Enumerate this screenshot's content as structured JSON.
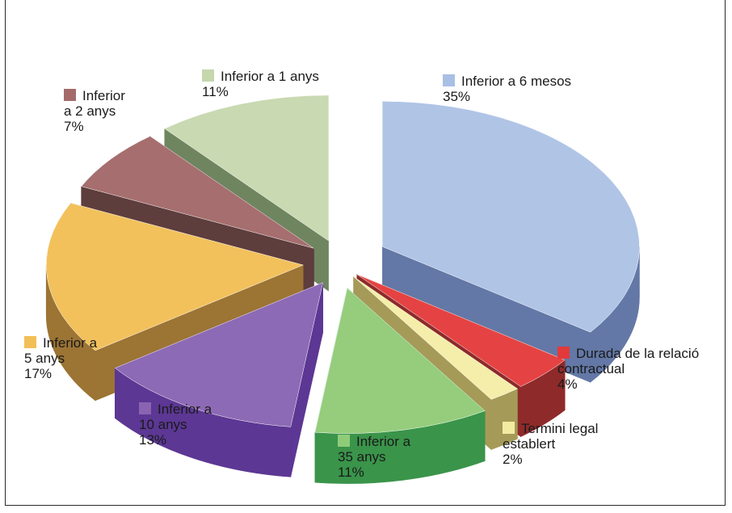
{
  "chart_data": {
    "type": "pie",
    "style": "exploded-3d",
    "unit": "%",
    "slices": [
      {
        "name": "Inferior a 6 mesos",
        "label_lines": [
          "Inferior a 6 mesos"
        ],
        "value": 35,
        "value_label": "35%",
        "top": "#b0c4e6",
        "side": "#6378a6",
        "marker": "#a9bfe5"
      },
      {
        "name": "Durada de la relació contractual",
        "label_lines": [
          "Durada de la relació",
          "contractual"
        ],
        "value": 4,
        "value_label": "4%",
        "top": "#e54343",
        "side": "#8e2a2a",
        "marker": "#e23a3a"
      },
      {
        "name": "Termini legal establert",
        "label_lines": [
          "Termini legal",
          "establert"
        ],
        "value": 2,
        "value_label": "2%",
        "top": "#f4eeaa",
        "side": "#a69a58",
        "marker": "#f3eba2"
      },
      {
        "name": "Inferior a 35 anys",
        "label_lines": [
          "Inferior a",
          "35 anys"
        ],
        "value": 11,
        "value_label": "11%",
        "top": "#95cd7c",
        "side": "#3a944a",
        "marker": "#8fcc7a"
      },
      {
        "name": "Inferior a 10 anys",
        "label_lines": [
          "Inferior a",
          "10 anys"
        ],
        "value": 13,
        "value_label": "13%",
        "top": "#8d6ab5",
        "side": "#5c3794",
        "marker": "#8a64b1"
      },
      {
        "name": "Inferior a 5 anys",
        "label_lines": [
          "Inferior a",
          "5 anys"
        ],
        "value": 17,
        "value_label": "17%",
        "top": "#f2c15c",
        "side": "#9c7434",
        "marker": "#f2bf56"
      },
      {
        "name": "Inferior a 2 anys",
        "label_lines": [
          "Inferior",
          "a 2 anys"
        ],
        "value": 7,
        "value_label": "7%",
        "top": "#a66e6e",
        "side": "#5e3d3d",
        "marker": "#a46a6a"
      },
      {
        "name": "Inferior a 1 anys",
        "label_lines": [
          "Inferior a 1 anys"
        ],
        "value": 11,
        "value_label": "11%",
        "top": "#c9d9b2",
        "side": "#6f8560",
        "marker": "#c6d6ae"
      }
    ],
    "legend": "labels beside each slice"
  }
}
